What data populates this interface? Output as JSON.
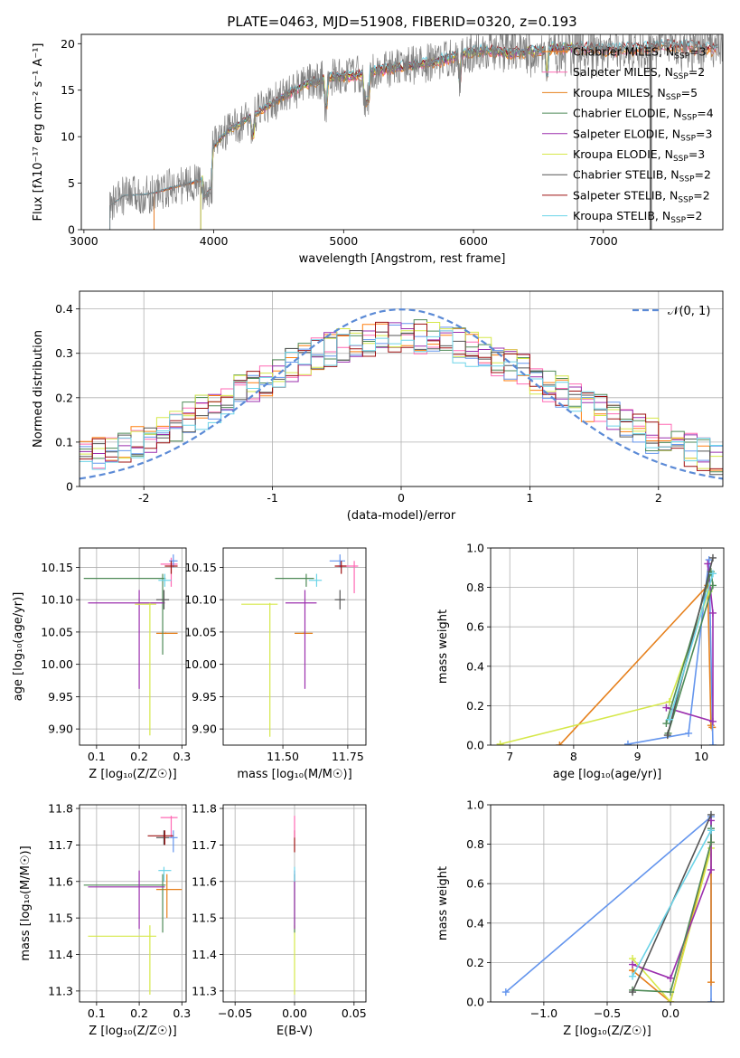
{
  "figure_title": "PLATE=0463, MJD=51908, FIBERID=0320, z=0.193",
  "model_colors": [
    "#ff7f0e",
    "#ff69b4",
    "#e6801c",
    "#4e8a57",
    "#9b2fae",
    "#d6e84a",
    "#555555",
    "#9e1010",
    "#6cd4e8"
  ],
  "chart_data": [
    {
      "id": "spectrum",
      "type": "line",
      "title": "PLATE=0463, MJD=51908, FIBERID=0320, z=0.193",
      "xlabel": "wavelength [Angstrom, rest frame]",
      "ylabel": "Flux [fλ10⁻¹⁷ erg cm⁻² s⁻¹ A⁻¹]",
      "xlim": [
        2980,
        7920
      ],
      "ylim": [
        0,
        21
      ],
      "xticks": [
        3000,
        4000,
        5000,
        6000,
        7000
      ],
      "yticks": [
        0,
        5,
        10,
        15,
        20
      ],
      "grid": false,
      "legend_position": "right",
      "data_color": "#808080",
      "continuum_x": [
        3200,
        3300,
        3500,
        3700,
        3900,
        4000,
        4100,
        4300,
        4500,
        4700,
        4900,
        5100,
        5300,
        5500,
        5700,
        5900,
        6100,
        6300,
        6500,
        6700,
        6900,
        7100,
        7300,
        7500,
        7700,
        7880
      ],
      "continuum_y": [
        2.5,
        3.6,
        3.8,
        4.6,
        5.3,
        9.0,
        10.5,
        12.3,
        14.0,
        15.6,
        16.4,
        16.6,
        17.2,
        17.6,
        18.0,
        18.8,
        19.3,
        19.0,
        19.2,
        19.6,
        19.5,
        19.3,
        19.5,
        19.8,
        19.6,
        19.4
      ],
      "series": [
        {
          "name": "Chabrier MILES, N",
          "sub": "SSP",
          "suffix": "=3",
          "color": "#ff7f0e",
          "xmin": 3540,
          "xmax": 7880
        },
        {
          "name": "Salpeter MILES, N",
          "sub": "SSP",
          "suffix": "=2",
          "color": "#ff69b4",
          "xmin": 3540,
          "xmax": 7880
        },
        {
          "name": "Kroupa MILES, N",
          "sub": "SSP",
          "suffix": "=5",
          "color": "#e6801c",
          "xmin": 3540,
          "xmax": 7880
        },
        {
          "name": "Chabrier ELODIE, N",
          "sub": "SSP",
          "suffix": "=4",
          "color": "#4e8a57",
          "xmin": 3900,
          "xmax": 6800
        },
        {
          "name": "Salpeter ELODIE, N",
          "sub": "SSP",
          "suffix": "=3",
          "color": "#9b2fae",
          "xmin": 3900,
          "xmax": 6800
        },
        {
          "name": "Kroupa ELODIE, N",
          "sub": "SSP",
          "suffix": "=3",
          "color": "#d6e84a",
          "xmin": 3900,
          "xmax": 6800
        },
        {
          "name": "Chabrier STELIB, N",
          "sub": "SSP",
          "suffix": "=2",
          "color": "#555555",
          "xmin": 3200,
          "xmax": 7880
        },
        {
          "name": "Salpeter STELIB, N",
          "sub": "SSP",
          "suffix": "=2",
          "color": "#9e1010",
          "xmin": 3200,
          "xmax": 7880
        },
        {
          "name": "Kroupa STELIB, N",
          "sub": "SSP",
          "suffix": "=2",
          "color": "#6cd4e8",
          "xmin": 3200,
          "xmax": 7880
        }
      ]
    },
    {
      "id": "residuals",
      "type": "line",
      "xlabel": "(data-model)/error",
      "ylabel": "Normed distribution",
      "xlim": [
        -2.5,
        2.5
      ],
      "ylim": [
        0,
        0.44
      ],
      "xticks": [
        -2,
        -1,
        0,
        1,
        2
      ],
      "yticks": [
        0.0,
        0.1,
        0.2,
        0.3,
        0.4
      ],
      "grid": true,
      "legend_position": "top-right",
      "legend": "𝒩(0, 1)",
      "gaussian": {
        "mu": 0,
        "sigma": 1,
        "color": "#5b8ad6"
      },
      "bin_width": 0.1,
      "histogram_colors": [
        "#ff7f0e",
        "#ff69b4",
        "#6495ed",
        "#4e8a57",
        "#9b2fae",
        "#d6e84a",
        "#555555",
        "#9e1010",
        "#6cd4e8"
      ]
    },
    {
      "id": "age-vs-Z",
      "type": "scatter",
      "xlabel": "Z [log₁₀(Z/Z☉)]",
      "ylabel": "age  [log₁₀(age/yr)]",
      "xlim": [
        0.06,
        0.31
      ],
      "ylim": [
        9.875,
        10.18
      ],
      "xticks": [
        0.1,
        0.2,
        0.3
      ],
      "yticks": [
        9.9,
        9.95,
        10.0,
        10.05,
        10.1,
        10.15
      ],
      "xtick_labels": [
        "0.1",
        "0.2",
        "0.3"
      ],
      "ytick_labels": [
        "9.90",
        "9.95",
        "10.00",
        "10.05",
        "10.10",
        "10.15"
      ],
      "grid": true,
      "points": [
        {
          "x": 0.262,
          "y": 10.048,
          "xlo": 0.24,
          "xhi": 0.29,
          "ylo": 10.047,
          "yhi": 10.049,
          "color": "#e6801c"
        },
        {
          "x": 0.275,
          "y": 10.155,
          "xlo": 0.25,
          "xhi": 0.29,
          "ylo": 10.12,
          "yhi": 10.165,
          "color": "#ff69b4"
        },
        {
          "x": 0.28,
          "y": 10.16,
          "xlo": 0.27,
          "xhi": 0.29,
          "ylo": 10.15,
          "yhi": 10.17,
          "color": "#6495ed"
        },
        {
          "x": 0.255,
          "y": 10.133,
          "xlo": 0.07,
          "xhi": 0.262,
          "ylo": 10.015,
          "yhi": 10.14,
          "color": "#4e8a57"
        },
        {
          "x": 0.2,
          "y": 10.095,
          "xlo": 0.08,
          "xhi": 0.26,
          "ylo": 9.962,
          "yhi": 10.115,
          "color": "#9b2fae"
        },
        {
          "x": 0.225,
          "y": 10.093,
          "xlo": 0.19,
          "xhi": 0.24,
          "ylo": 9.89,
          "yhi": 10.095,
          "color": "#d6e84a"
        },
        {
          "x": 0.258,
          "y": 10.1,
          "xlo": 0.24,
          "xhi": 0.27,
          "ylo": 10.085,
          "yhi": 10.115,
          "color": "#555555"
        },
        {
          "x": 0.275,
          "y": 10.152,
          "xlo": 0.26,
          "xhi": 0.29,
          "ylo": 10.14,
          "yhi": 10.16,
          "color": "#9e1010"
        },
        {
          "x": 0.26,
          "y": 10.13,
          "xlo": 0.245,
          "xhi": 0.275,
          "ylo": 10.12,
          "yhi": 10.14,
          "color": "#6cd4e8"
        }
      ]
    },
    {
      "id": "age-vs-mass",
      "type": "scatter",
      "xlabel": "mass [log₁₀(M/M☉)]",
      "xlim": [
        11.27,
        11.82
      ],
      "ylim": [
        9.875,
        10.18
      ],
      "xticks": [
        11.5,
        11.75
      ],
      "yticks": [
        9.9,
        9.95,
        10.0,
        10.05,
        10.1,
        10.15
      ],
      "xtick_labels": [
        "11.50",
        "11.75"
      ],
      "ytick_labels": [
        "9.90",
        "9.95",
        "10.00",
        "10.05",
        "10.10",
        "10.15"
      ],
      "grid": true,
      "points": [
        {
          "x": 11.58,
          "y": 10.048,
          "xlo": 11.545,
          "xhi": 11.615,
          "ylo": 10.047,
          "yhi": 10.049,
          "color": "#e6801c"
        },
        {
          "x": 11.775,
          "y": 10.152,
          "xlo": 11.71,
          "xhi": 11.79,
          "ylo": 10.11,
          "yhi": 10.16,
          "color": "#ff69b4"
        },
        {
          "x": 11.72,
          "y": 10.16,
          "xlo": 11.68,
          "xhi": 11.74,
          "ylo": 10.15,
          "yhi": 10.17,
          "color": "#6495ed"
        },
        {
          "x": 11.59,
          "y": 10.133,
          "xlo": 11.47,
          "xhi": 11.62,
          "ylo": 10.12,
          "yhi": 10.14,
          "color": "#4e8a57"
        },
        {
          "x": 11.585,
          "y": 10.095,
          "xlo": 11.51,
          "xhi": 11.63,
          "ylo": 9.962,
          "yhi": 10.115,
          "color": "#9b2fae"
        },
        {
          "x": 11.45,
          "y": 10.093,
          "xlo": 11.34,
          "xhi": 11.48,
          "ylo": 9.888,
          "yhi": 10.095,
          "color": "#d6e84a"
        },
        {
          "x": 11.72,
          "y": 10.1,
          "xlo": 11.7,
          "xhi": 11.74,
          "ylo": 10.085,
          "yhi": 10.115,
          "color": "#555555"
        },
        {
          "x": 11.725,
          "y": 10.152,
          "xlo": 11.7,
          "xhi": 11.745,
          "ylo": 10.14,
          "yhi": 10.16,
          "color": "#9e1010"
        },
        {
          "x": 11.63,
          "y": 10.13,
          "xlo": 11.6,
          "xhi": 11.65,
          "ylo": 10.12,
          "yhi": 10.14,
          "color": "#6cd4e8"
        }
      ]
    },
    {
      "id": "weight-vs-age",
      "type": "line",
      "xlabel": "age  [log₁₀(age/yr)]",
      "ylabel": "mass weight",
      "xlim": [
        6.7,
        10.35
      ],
      "ylim": [
        0,
        1.0
      ],
      "xticks": [
        7,
        8,
        9,
        10
      ],
      "yticks": [
        0.0,
        0.2,
        0.4,
        0.6,
        0.8,
        1.0
      ],
      "xtick_labels": [
        "7",
        "8",
        "9",
        "10"
      ],
      "ytick_labels": [
        "0.0",
        "0.2",
        "0.4",
        "0.6",
        "0.8",
        "1.0"
      ],
      "grid": true,
      "series": [
        {
          "color": "#e6801c",
          "x": [
            7.78,
            10.1,
            10.15,
            10.17
          ],
          "y": [
            0.0,
            0.81,
            0.1,
            0.09
          ]
        },
        {
          "color": "#6495ed",
          "x": [
            8.85,
            9.8,
            10.12,
            10.18
          ],
          "y": [
            0.005,
            0.06,
            0.94,
            0.0
          ]
        },
        {
          "color": "#d6e84a",
          "x": [
            6.85,
            9.5,
            10.12
          ],
          "y": [
            0.005,
            0.22,
            0.78
          ]
        },
        {
          "color": "#9b2fae",
          "x": [
            9.45,
            10.18,
            10.18,
            10.1
          ],
          "y": [
            0.19,
            0.12,
            0.67,
            0.92
          ]
        },
        {
          "color": "#4e8a57",
          "x": [
            9.48,
            10.18,
            10.15,
            9.45
          ],
          "y": [
            0.06,
            0.81,
            0.88,
            0.11
          ]
        },
        {
          "color": "#555555",
          "x": [
            9.47,
            10.18
          ],
          "y": [
            0.05,
            0.95
          ]
        },
        {
          "color": "#6cd4e8",
          "x": [
            9.5,
            10.18
          ],
          "y": [
            0.13,
            0.87
          ]
        }
      ]
    },
    {
      "id": "mass-vs-Z",
      "type": "scatter",
      "xlabel": "Z [log₁₀(Z/Z☉)]",
      "ylabel": "mass [log₁₀(M/M☉)]",
      "xlim": [
        0.06,
        0.31
      ],
      "ylim": [
        11.27,
        11.81
      ],
      "xticks": [
        0.1,
        0.2,
        0.3
      ],
      "yticks": [
        11.3,
        11.4,
        11.5,
        11.6,
        11.7,
        11.8
      ],
      "xtick_labels": [
        "0.1",
        "0.2",
        "0.3"
      ],
      "ytick_labels": [
        "11.3",
        "11.4",
        "11.5",
        "11.6",
        "11.7",
        "11.8"
      ],
      "grid": true,
      "points": [
        {
          "x": 0.265,
          "y": 11.578,
          "xlo": 0.24,
          "xhi": 0.3,
          "ylo": 11.5,
          "yhi": 11.62,
          "color": "#e6801c"
        },
        {
          "x": 0.275,
          "y": 11.775,
          "xlo": 0.25,
          "xhi": 0.29,
          "ylo": 11.72,
          "yhi": 11.78,
          "color": "#ff69b4"
        },
        {
          "x": 0.28,
          "y": 11.72,
          "xlo": 0.27,
          "xhi": 0.29,
          "ylo": 11.68,
          "yhi": 11.74,
          "color": "#6495ed"
        },
        {
          "x": 0.255,
          "y": 11.59,
          "xlo": 0.07,
          "xhi": 0.262,
          "ylo": 11.46,
          "yhi": 11.62,
          "color": "#4e8a57"
        },
        {
          "x": 0.2,
          "y": 11.585,
          "xlo": 0.08,
          "xhi": 0.26,
          "ylo": 11.47,
          "yhi": 11.63,
          "color": "#9b2fae"
        },
        {
          "x": 0.225,
          "y": 11.45,
          "xlo": 0.08,
          "xhi": 0.24,
          "ylo": 11.29,
          "yhi": 11.48,
          "color": "#d6e84a"
        },
        {
          "x": 0.258,
          "y": 11.72,
          "xlo": 0.24,
          "xhi": 0.27,
          "ylo": 11.7,
          "yhi": 11.74,
          "color": "#555555"
        },
        {
          "x": 0.26,
          "y": 11.725,
          "xlo": 0.22,
          "xhi": 0.28,
          "ylo": 11.7,
          "yhi": 11.74,
          "color": "#9e1010"
        },
        {
          "x": 0.258,
          "y": 11.63,
          "xlo": 0.245,
          "xhi": 0.275,
          "ylo": 11.6,
          "yhi": 11.64,
          "color": "#6cd4e8"
        }
      ]
    },
    {
      "id": "mass-vs-ebv",
      "type": "scatter",
      "xlabel": "E(B-V)",
      "xlim": [
        -0.06,
        0.06
      ],
      "ylim": [
        11.27,
        11.81
      ],
      "xticks": [
        -0.05,
        0.0,
        0.05
      ],
      "yticks": [
        11.3,
        11.4,
        11.5,
        11.6,
        11.7,
        11.8
      ],
      "xtick_labels": [
        "−0.05",
        "0.00",
        "0.05"
      ],
      "ytick_labels": [
        "11.3",
        "11.4",
        "11.5",
        "11.6",
        "11.7",
        "11.8"
      ],
      "grid": true,
      "points": [
        {
          "x": 0.0,
          "y": 11.45,
          "xlo": 0.0,
          "xhi": 0.0,
          "ylo": 11.29,
          "yhi": 11.48,
          "color": "#d6e84a"
        },
        {
          "x": 0.0,
          "y": 11.59,
          "xlo": 0.0,
          "xhi": 0.0,
          "ylo": 11.46,
          "yhi": 11.62,
          "color": "#4e8a57"
        },
        {
          "x": 0.0,
          "y": 11.585,
          "xlo": 0.0,
          "xhi": 0.0,
          "ylo": 11.47,
          "yhi": 11.63,
          "color": "#9b2fae"
        },
        {
          "x": 0.0,
          "y": 11.63,
          "xlo": 0.0,
          "xhi": 0.0,
          "ylo": 11.6,
          "yhi": 11.64,
          "color": "#6cd4e8"
        },
        {
          "x": 0.0,
          "y": 11.72,
          "xlo": 0.0,
          "xhi": 0.0,
          "ylo": 11.68,
          "yhi": 11.74,
          "color": "#9e1010"
        },
        {
          "x": 0.0,
          "y": 11.775,
          "xlo": 0.0,
          "xhi": 0.0,
          "ylo": 11.72,
          "yhi": 11.78,
          "color": "#ff69b4"
        }
      ]
    },
    {
      "id": "weight-vs-Z",
      "type": "line",
      "xlabel": "Z [log₁₀(Z/Z☉)]",
      "ylabel": "mass weight",
      "xlim": [
        -1.42,
        0.42
      ],
      "ylim": [
        0,
        1.0
      ],
      "xticks": [
        -1.0,
        -0.5,
        0.0
      ],
      "yticks": [
        0.0,
        0.2,
        0.4,
        0.6,
        0.8,
        1.0
      ],
      "xtick_labels": [
        "−1.0",
        "−0.5",
        "0.0"
      ],
      "ytick_labels": [
        "0.0",
        "0.2",
        "0.4",
        "0.6",
        "0.8",
        "1.0"
      ],
      "grid": true,
      "series": [
        {
          "color": "#6495ed",
          "x": [
            -1.3,
            0.32,
            0.32
          ],
          "y": [
            0.05,
            0.94,
            0.0
          ]
        },
        {
          "color": "#e6801c",
          "x": [
            -0.3,
            0.0,
            0.32,
            0.32
          ],
          "y": [
            0.16,
            0.0,
            0.81,
            0.1
          ]
        },
        {
          "color": "#d6e84a",
          "x": [
            -0.3,
            0.0,
            0.32
          ],
          "y": [
            0.22,
            0.0,
            0.78
          ]
        },
        {
          "color": "#9b2fae",
          "x": [
            -0.3,
            0.0,
            0.32,
            0.32
          ],
          "y": [
            0.19,
            0.12,
            0.67,
            0.92
          ]
        },
        {
          "color": "#4e8a57",
          "x": [
            -0.3,
            0.0,
            0.32,
            0.32
          ],
          "y": [
            0.06,
            0.05,
            0.81,
            0.88
          ]
        },
        {
          "color": "#555555",
          "x": [
            -0.3,
            0.32
          ],
          "y": [
            0.05,
            0.95
          ]
        },
        {
          "color": "#6cd4e8",
          "x": [
            -0.3,
            0.32
          ],
          "y": [
            0.13,
            0.87
          ]
        }
      ]
    }
  ]
}
